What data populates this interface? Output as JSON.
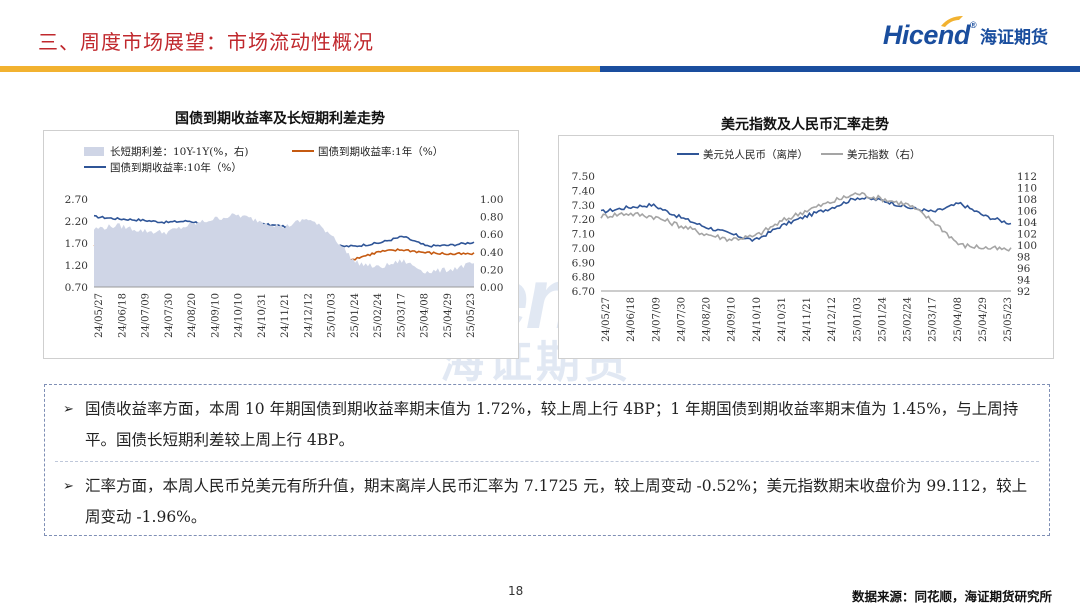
{
  "header": {
    "title": "三、周度市场展望：市场流动性概况",
    "logo_text": "Hicend",
    "logo_reg": "®",
    "logo_cn": "海证期货"
  },
  "colors": {
    "title_red": "#c0282d",
    "brand_blue": "#1a4e9e",
    "stripe_yellow": "#f2b230",
    "stripe_blue": "#1a4e9e",
    "series_blue": "#2f5597",
    "series_orange": "#c55a11",
    "series_gray": "#a5a5a5",
    "area_gray": "#cfd5e6"
  },
  "watermark": {
    "en": "cend",
    "cn": "海证期货"
  },
  "charts": [
    {
      "title": "国债到期收益率及长短期利差走势",
      "legend": [
        "长短期利差：10Y-1Y(%，右)",
        "国债到期收益率:1年（%）",
        "国债到期收益率:10年（%）"
      ],
      "left_ticks": [
        "2.70",
        "2.20",
        "1.70",
        "1.20",
        "0.70"
      ],
      "right_ticks": [
        "1.00",
        "0.80",
        "0.60",
        "0.40",
        "0.20",
        "0.00"
      ],
      "x_ticks": [
        "24/05/27",
        "24/06/18",
        "24/07/09",
        "24/07/30",
        "24/08/20",
        "24/09/10",
        "24/10/10",
        "24/10/31",
        "24/11/21",
        "24/12/12",
        "25/01/03",
        "25/01/24",
        "25/02/24",
        "25/03/17",
        "25/04/08",
        "25/04/29",
        "25/05/23"
      ]
    },
    {
      "title": "美元指数及人民币汇率走势",
      "legend": [
        "美元兑人民币（离岸）",
        "美元指数（右）"
      ],
      "left_ticks": [
        "7.50",
        "7.40",
        "7.30",
        "7.20",
        "7.10",
        "7.00",
        "6.90",
        "6.80",
        "6.70"
      ],
      "right_ticks": [
        "112",
        "110",
        "108",
        "106",
        "104",
        "102",
        "100",
        "98",
        "96",
        "94",
        "92"
      ],
      "x_ticks": [
        "24/05/27",
        "24/06/18",
        "24/07/09",
        "24/07/30",
        "24/08/20",
        "24/09/10",
        "24/10/10",
        "24/10/31",
        "24/11/21",
        "24/12/12",
        "25/01/03",
        "25/01/24",
        "25/02/24",
        "25/03/17",
        "25/04/08",
        "25/04/29",
        "25/05/23"
      ]
    }
  ],
  "chart_data": [
    {
      "type": "line",
      "title": "国债到期收益率及长短期利差走势",
      "ylim": [
        0.7,
        2.7
      ],
      "y2lim": [
        0.0,
        1.0
      ],
      "categories": [
        "24/05/27",
        "24/06/18",
        "24/07/09",
        "24/07/30",
        "24/08/20",
        "24/09/10",
        "24/10/10",
        "24/10/31",
        "24/11/21",
        "24/12/12",
        "25/01/03",
        "25/01/24",
        "25/02/24",
        "25/03/17",
        "25/04/08",
        "25/04/29",
        "25/05/23"
      ],
      "series": [
        {
          "name": "国债到期收益率:10年（%）",
          "axis": "left",
          "values": [
            2.3,
            2.25,
            2.22,
            2.17,
            2.2,
            2.1,
            2.15,
            2.13,
            2.08,
            1.9,
            1.62,
            1.63,
            1.7,
            1.85,
            1.63,
            1.65,
            1.72
          ]
        },
        {
          "name": "国债到期收益率:1年（%）",
          "axis": "left",
          "values": [
            1.65,
            1.55,
            1.58,
            1.55,
            1.5,
            1.33,
            1.32,
            1.38,
            1.4,
            1.12,
            1.03,
            1.35,
            1.5,
            1.55,
            1.48,
            1.45,
            1.45
          ]
        },
        {
          "name": "长短期利差：10Y-1Y(%，右)",
          "axis": "right",
          "type": "area",
          "values": [
            0.66,
            0.7,
            0.64,
            0.62,
            0.7,
            0.77,
            0.82,
            0.75,
            0.68,
            0.78,
            0.6,
            0.28,
            0.22,
            0.3,
            0.17,
            0.2,
            0.27
          ]
        }
      ]
    },
    {
      "type": "line",
      "title": "美元指数及人民币汇率走势",
      "ylim": [
        6.7,
        7.5
      ],
      "y2lim": [
        92,
        112
      ],
      "categories": [
        "24/05/27",
        "24/06/18",
        "24/07/09",
        "24/07/30",
        "24/08/20",
        "24/09/10",
        "24/10/10",
        "24/10/31",
        "24/11/21",
        "24/12/12",
        "25/01/03",
        "25/01/24",
        "25/02/24",
        "25/03/17",
        "25/04/08",
        "25/04/29",
        "25/05/23"
      ],
      "series": [
        {
          "name": "美元兑人民币（离岸）",
          "axis": "left",
          "values": [
            7.25,
            7.28,
            7.3,
            7.22,
            7.15,
            7.1,
            7.05,
            7.15,
            7.22,
            7.28,
            7.35,
            7.33,
            7.28,
            7.25,
            7.31,
            7.22,
            7.17
          ]
        },
        {
          "name": "美元指数（右）",
          "axis": "right",
          "values": [
            105.0,
            105.5,
            105.0,
            103.5,
            102.0,
            101.0,
            101.5,
            104.0,
            106.0,
            107.5,
            109.0,
            108.0,
            107.0,
            104.0,
            100.0,
            99.5,
            99.1
          ]
        }
      ]
    }
  ],
  "summary": {
    "arrow": "➢",
    "bullets": [
      "国债收益率方面，本周 10 年期国债到期收益率期末值为 1.72%，较上周上行 4BP；1 年期国债到期收益率期末值为 1.45%，与上周持平。国债长短期利差较上周上行 4BP。",
      "汇率方面，本周人民币兑美元有所升值，期末离岸人民币汇率为 7.1725 元，较上周变动 -0.52%；美元指数期末收盘价为 99.112，较上周变动 -1.96%。"
    ]
  },
  "footer": {
    "page_number": "18",
    "source": "数据来源：同花顺，海证期货研究所"
  }
}
